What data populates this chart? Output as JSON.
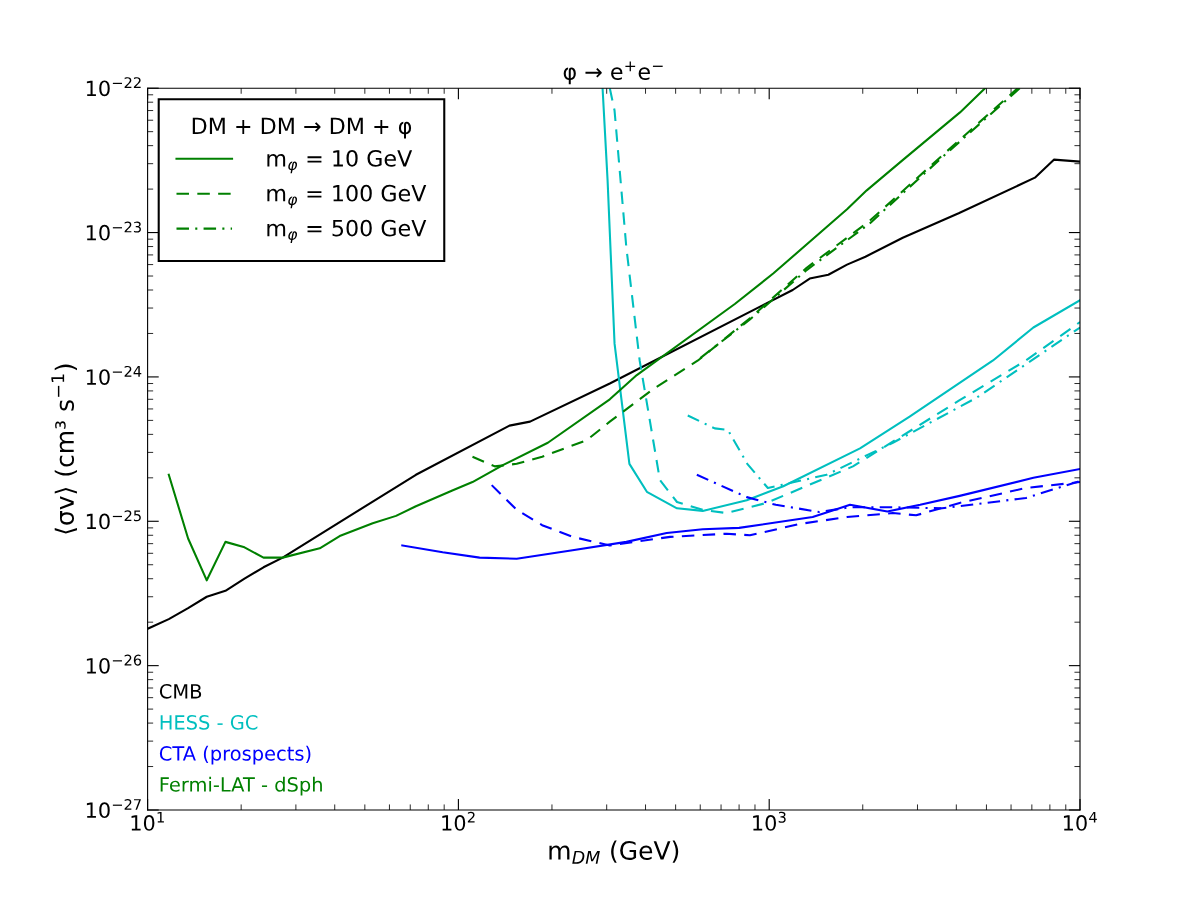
{
  "chart_data": {
    "type": "line",
    "title": "φ → e$^{+}$e$^{−}$",
    "xlabel": "m$_{DM}$ (GeV)",
    "ylabel": "⟨σv⟩ (cm³ s$^{−1}$)",
    "legend_title": "DM + DM → DM + φ",
    "log": "xy",
    "grid": false,
    "legend": "top left",
    "marker": "none",
    "xlim": [
      10,
      10000
    ],
    "ylim": [
      1e-27,
      1e-22
    ],
    "xticks": [
      {
        "value": 10,
        "label": "10$^{1}$"
      },
      {
        "value": 100,
        "label": "10$^{2}$"
      },
      {
        "value": 1000,
        "label": "10$^{3}$"
      },
      {
        "value": 10000,
        "label": "10$^{4}$"
      }
    ],
    "yticks": [
      {
        "value": 1e-27,
        "label": "10$^{−27}$"
      },
      {
        "value": 1e-26,
        "label": "10$^{−26}$"
      },
      {
        "value": 1e-25,
        "label": "10$^{−25}$"
      },
      {
        "value": 1e-24,
        "label": "10$^{−24}$"
      },
      {
        "value": 1e-23,
        "label": "10$^{−23}$"
      },
      {
        "value": 1e-22,
        "label": "10$^{−22}$"
      }
    ],
    "annotations": [
      "CMB",
      "HESS - GC",
      "CTA (prospects)",
      "Fermi-LAT - dSph"
    ],
    "series": [
      {
        "color": "#000000",
        "line_style": "solid",
        "x": [
          10,
          11.7,
          13.5,
          15.5,
          17.8,
          20.5,
          23.6,
          27.2,
          73,
          146,
          170,
          307,
          1190,
          1350,
          1550,
          1780,
          2040,
          2690,
          4070,
          7160,
          8240,
          10000
        ],
        "values": [
          1.8e-26,
          2.1e-26,
          2.5e-26,
          3e-26,
          3.3e-26,
          4e-26,
          4.8e-26,
          5.6e-26,
          2.1e-25,
          4.6e-25,
          4.9e-25,
          9e-25,
          4e-24,
          4.8e-24,
          5.1e-24,
          6e-24,
          6.8e-24,
          9.2e-24,
          1.36e-23,
          2.4e-23,
          3.2e-23,
          3.1e-23
        ]
      },
      {
        "color": "#00bfbf",
        "line_style": "solid",
        "x": [
          291,
          302,
          318,
          355,
          404,
          505,
          611,
          847,
          1110,
          1960,
          2830,
          5250,
          7080,
          10000
        ],
        "values": [
          1e-22,
          2.3e-23,
          1.7e-24,
          2.5e-25,
          1.6e-25,
          1.23e-25,
          1.18e-25,
          1.4e-25,
          1.75e-25,
          3.2e-25,
          5.3e-25,
          1.3e-24,
          2.2e-24,
          3.4e-24
        ]
      },
      {
        "color": "#00bfbf",
        "line_style": "dashed",
        "x": [
          307,
          318,
          347,
          383,
          445,
          505,
          611,
          730,
          980,
          1860,
          4100,
          6700,
          10000
        ],
        "values": [
          1e-22,
          7e-23,
          7.9e-24,
          1.3e-24,
          1.93e-25,
          1.36e-25,
          1.2e-25,
          1.14e-25,
          1.34e-25,
          2.4e-25,
          6.9e-25,
          1.3e-24,
          2.4e-24
        ]
      },
      {
        "color": "#00bfbf",
        "line_style": "dashdot",
        "x": [
          547,
          668,
          736,
          850,
          990,
          1530,
          2500,
          4660,
          10000
        ],
        "values": [
          5.4e-25,
          4.4e-25,
          4.3e-25,
          2.5e-25,
          1.7e-25,
          2.1e-25,
          3.5e-25,
          7.2e-25,
          2.2e-24
        ]
      },
      {
        "color": "#0000ff",
        "line_style": "solid",
        "x": [
          66,
          89,
          117,
          154,
          233,
          347,
          468,
          611,
          800,
          1380,
          1820,
          2400,
          3060,
          4100,
          7080,
          10000
        ],
        "values": [
          6.8e-26,
          6.1e-26,
          5.6e-26,
          5.5e-26,
          6.3e-26,
          7.2e-26,
          8.3e-26,
          8.8e-26,
          9e-26,
          1.07e-25,
          1.3e-25,
          1.17e-25,
          1.3e-25,
          1.5e-25,
          2e-25,
          2.3e-25
        ]
      },
      {
        "color": "#0000ff",
        "line_style": "dashed",
        "x": [
          128,
          154,
          186,
          233,
          307,
          480,
          730,
          867,
          1260,
          1780,
          2500,
          2970,
          4100,
          6700,
          10000
        ],
        "values": [
          1.78e-25,
          1.2e-25,
          9.4e-26,
          7.8e-26,
          6.8e-26,
          7.8e-26,
          8.2e-26,
          8e-26,
          9.6e-26,
          1.07e-25,
          1.14e-25,
          1.1e-25,
          1.34e-25,
          1.7e-25,
          1.87e-25
        ]
      },
      {
        "color": "#0000ff",
        "line_style": "dashdot",
        "x": [
          585,
          847,
          1050,
          1450,
          1820,
          2500,
          3600,
          6700,
          10000
        ],
        "values": [
          2.1e-25,
          1.47e-25,
          1.3e-25,
          1.16e-25,
          1.25e-25,
          1.25e-25,
          1.23e-25,
          1.45e-25,
          1.9e-25
        ]
      },
      {
        "name": "m$_{φ}$ = 10 GeV",
        "color": "#008000",
        "line_style": "solid",
        "x": [
          11.7,
          13.5,
          15.5,
          17.8,
          20.5,
          23.6,
          27.2,
          35.8,
          41.5,
          53,
          63,
          73,
          96,
          111,
          139,
          194,
          307,
          375,
          775,
          1030,
          1780,
          2060,
          2700,
          4110,
          4950
        ],
        "values": [
          2.1e-25,
          7.6e-26,
          3.9e-26,
          7.2e-26,
          6.6e-26,
          5.6e-26,
          5.6e-26,
          6.5e-26,
          7.9e-26,
          9.7e-26,
          1.09e-25,
          1.27e-25,
          1.64e-25,
          1.87e-25,
          2.45e-25,
          3.5e-25,
          7e-25,
          1.03e-24,
          3.2e-24,
          5.2e-24,
          1.45e-23,
          1.96e-23,
          3.2e-23,
          6.8e-23,
          1e-22
        ]
      },
      {
        "name": "m$_{φ}$ = 100 GeV",
        "color": "#008000",
        "line_style": "dashed",
        "x": [
          111,
          131,
          154,
          186,
          259,
          307,
          422,
          590,
          867,
          1320,
          2100,
          3700,
          6300
        ],
        "values": [
          2.8e-25,
          2.4e-25,
          2.5e-25,
          2.8e-25,
          3.65e-25,
          4.9e-25,
          8.2e-25,
          1.3e-24,
          2.55e-24,
          5.7e-24,
          1.2e-23,
          3.6e-23,
          1e-22
        ]
      },
      {
        "name": "m$_{φ}$ = 500 GeV",
        "color": "#008000",
        "line_style": "dashdot",
        "x": [
          600,
          867,
          1320,
          2100,
          3700,
          6400
        ],
        "values": [
          1.35e-24,
          2.5e-24,
          5.5e-24,
          1.15e-23,
          3.5e-23,
          1e-22
        ]
      }
    ]
  }
}
